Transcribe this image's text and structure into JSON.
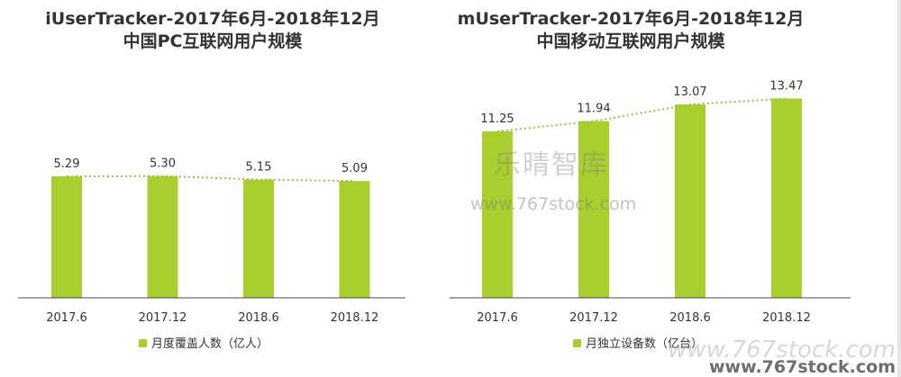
{
  "colors": {
    "bar": "#a9cf2f",
    "trend": "#8cc63f",
    "axis": "#444444",
    "text": "#333333"
  },
  "chart_data": [
    {
      "type": "bar",
      "title": "iUserTracker-2017年6月-2018年12月",
      "subtitle": "中国PC互联网用户规模",
      "categories": [
        "2017.6",
        "2017.12",
        "2018.6",
        "2018.12"
      ],
      "values": [
        5.29,
        5.3,
        5.15,
        5.09
      ],
      "value_labels": [
        "5.29",
        "5.30",
        "5.15",
        "5.09"
      ],
      "legend": "月度覆盖人数（亿人）",
      "legend_position": "bottom",
      "trend_line": "dotted",
      "ylim": [
        0,
        10.5
      ],
      "grid": false
    },
    {
      "type": "bar",
      "title": "mUserTracker-2017年6月-2018年12月",
      "subtitle": "中国移动互联网用户规模",
      "categories": [
        "2017.6",
        "2017.12",
        "2018.6",
        "2018.12"
      ],
      "values": [
        11.25,
        11.94,
        13.07,
        13.47
      ],
      "value_labels": [
        "11.25",
        "11.94",
        "13.07",
        "13.47"
      ],
      "legend": "月独立设备数（亿台）",
      "legend_position": "bottom",
      "trend_line": "dotted",
      "ylim": [
        0,
        16.3
      ],
      "grid": false
    }
  ],
  "watermark": {
    "center_text": "乐晴智库",
    "center_url": "www.767stock.com",
    "bottom_url_faded": "www.767stock.com",
    "bottom_url_bold": "www.767stock.com"
  }
}
